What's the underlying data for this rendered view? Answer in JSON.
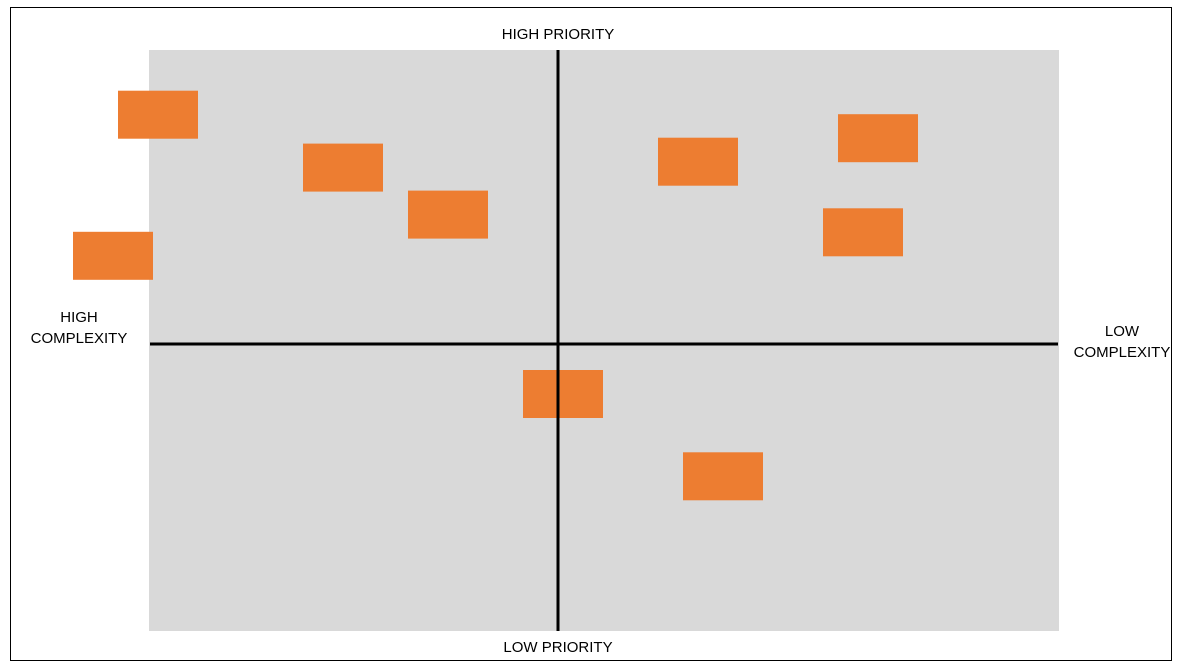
{
  "labels": {
    "top": "HIGH PRIORITY",
    "bottom": "LOW PRIORITY",
    "left_line1": "HIGH",
    "left_line2": "COMPLEXITY",
    "right_line1": "LOW",
    "right_line2": "COMPLEXITY"
  },
  "colors": {
    "plot_background": "#d9d9d9",
    "item_fill": "#ed7d31",
    "axis": "#000000"
  },
  "items": [
    {
      "complexity": -0.8,
      "priority": 0.78
    },
    {
      "complexity": -0.43,
      "priority": 0.6
    },
    {
      "complexity": -0.22,
      "priority": 0.44
    },
    {
      "complexity": -0.89,
      "priority": 0.3
    },
    {
      "complexity": 0.28,
      "priority": 0.62
    },
    {
      "complexity": 0.64,
      "priority": 0.7
    },
    {
      "complexity": 0.61,
      "priority": 0.38
    },
    {
      "complexity": 0.01,
      "priority": -0.17
    },
    {
      "complexity": 0.33,
      "priority": -0.45
    }
  ]
}
